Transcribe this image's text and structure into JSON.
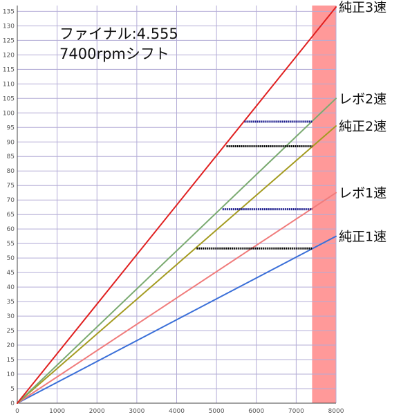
{
  "chart_data": {
    "type": "line",
    "xlim": [
      0,
      8000
    ],
    "ylim": [
      0,
      137
    ],
    "x_ticks": [
      0,
      1000,
      2000,
      3000,
      4000,
      5000,
      6000,
      7000,
      8000
    ],
    "y_ticks": [
      0,
      5,
      10,
      15,
      20,
      25,
      30,
      35,
      40,
      45,
      50,
      55,
      60,
      65,
      70,
      75,
      80,
      85,
      90,
      95,
      100,
      105,
      110,
      115,
      120,
      125,
      130,
      135
    ],
    "grid": true,
    "annotations": [
      "ファイナル:4.555",
      "7400rpmシフト"
    ],
    "shift_band": {
      "from": 7400,
      "to": 8000,
      "color": "#ff9999"
    },
    "series": [
      {
        "name": "純正1速",
        "color": "#3a6fd8",
        "x": [
          0,
          8000
        ],
        "y": [
          0,
          57.5
        ]
      },
      {
        "name": "レボ1速",
        "color": "#f07b7b",
        "x": [
          0,
          8000
        ],
        "y": [
          0,
          72.5
        ]
      },
      {
        "name": "純正2速",
        "color": "#a49b20",
        "x": [
          0,
          8000
        ],
        "y": [
          0,
          95.5
        ]
      },
      {
        "name": "レボ2速",
        "color": "#7aaa70",
        "x": [
          0,
          8000
        ],
        "y": [
          0,
          105
        ]
      },
      {
        "name": "純正3速",
        "color": "#e02020",
        "x": [
          0,
          8000
        ],
        "y": [
          0,
          136.5
        ]
      }
    ],
    "shift_lines": [
      {
        "color": "#000000",
        "x": [
          4500,
          7400
        ],
        "y": [
          53.3,
          53.3
        ]
      },
      {
        "color": "#1a1a8c",
        "x": [
          5150,
          7400
        ],
        "y": [
          66.8,
          66.8
        ]
      },
      {
        "color": "#000000",
        "x": [
          5250,
          7400
        ],
        "y": [
          88.5,
          88.5
        ]
      },
      {
        "color": "#1a1a8c",
        "x": [
          5700,
          7400
        ],
        "y": [
          97,
          97
        ]
      }
    ]
  }
}
